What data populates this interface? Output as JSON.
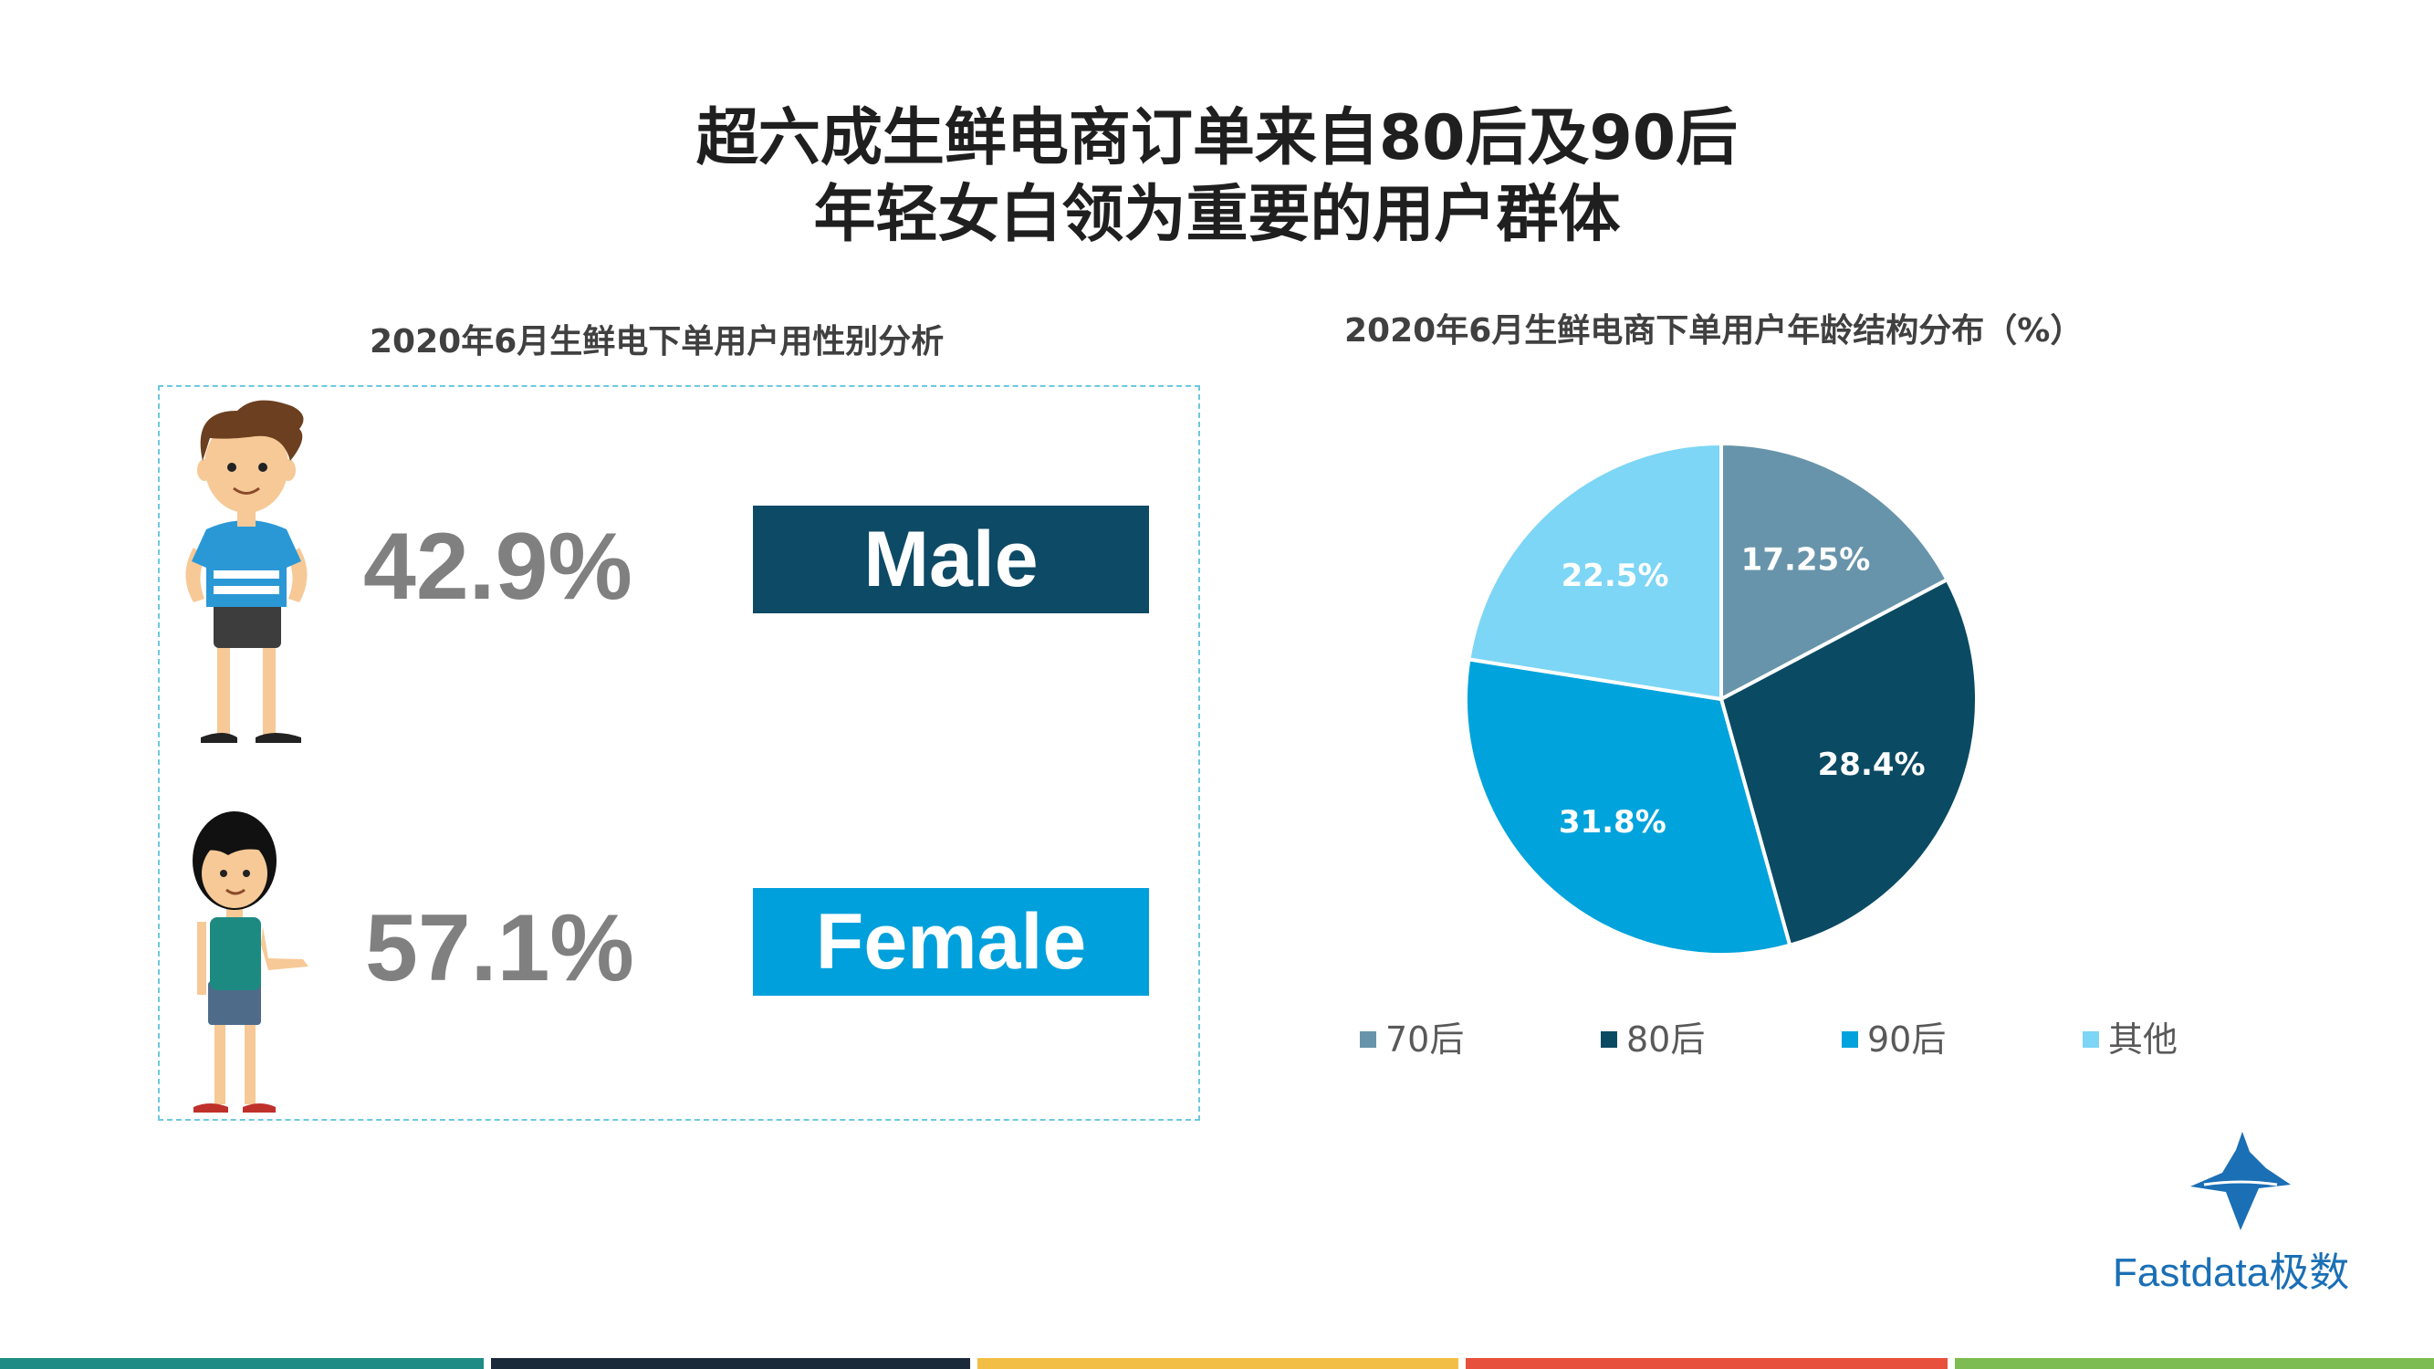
{
  "title": {
    "line1": "超六成生鲜电商订单来自80后及90后",
    "line2": "年轻女白领为重要的用户群体"
  },
  "gender_panel": {
    "title": "2020年6月生鲜电下单用户用性别分析",
    "male": {
      "percent": "42.9%",
      "label": "Male",
      "color": "#0d4a66"
    },
    "female": {
      "percent": "57.1%",
      "label": "Female",
      "color": "#00a0dc"
    }
  },
  "chart_data": {
    "type": "pie",
    "title": "2020年6月生鲜电商下单用户年龄结构分布（%）",
    "categories": [
      "70后",
      "80后",
      "90后",
      "其他"
    ],
    "values": [
      17.25,
      28.4,
      31.8,
      22.5
    ],
    "labels": [
      "17.25%",
      "28.4%",
      "31.8%",
      "22.5%"
    ],
    "colors": [
      "#6794aa",
      "#0b4a63",
      "#00a3dc",
      "#7dd6f5"
    ],
    "legend_position": "bottom"
  },
  "logo": {
    "text": "Fastdata极数"
  },
  "bottom_bar_colors": [
    "#1e8c84",
    "#1b2a3a",
    "#f2be45",
    "#e8503e",
    "#7cbc52"
  ]
}
